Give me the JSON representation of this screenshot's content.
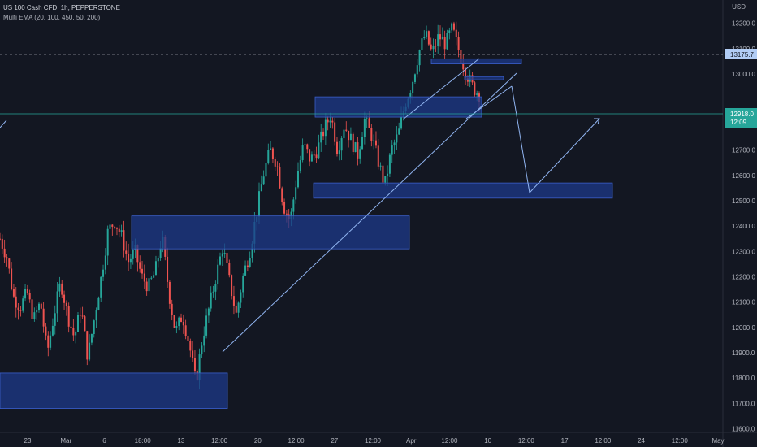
{
  "header": {
    "symbol_line": "US 100 Cash CFD, 1h, PEPPERSTONE",
    "indicator_line": "Multi EMA (20, 100, 450, 50, 200)"
  },
  "price_axis": {
    "currency": "USD",
    "ticks": [
      {
        "value": 13200,
        "label": "13200.0"
      },
      {
        "value": 13100,
        "label": "13100.0"
      },
      {
        "value": 13000,
        "label": "13000.0"
      },
      {
        "value": 12800,
        "label": "12800.0"
      },
      {
        "value": 12700,
        "label": "12700.0"
      },
      {
        "value": 12600,
        "label": "12600.0"
      },
      {
        "value": 12500,
        "label": "12500.0"
      },
      {
        "value": 12400,
        "label": "12400.0"
      },
      {
        "value": 12300,
        "label": "12300.0"
      },
      {
        "value": 12200,
        "label": "12200.0"
      },
      {
        "value": 12100,
        "label": "12100.0"
      },
      {
        "value": 12000,
        "label": "12000.0"
      },
      {
        "value": 11900,
        "label": "11900.0"
      },
      {
        "value": 11800,
        "label": "11800.0"
      },
      {
        "value": 11700,
        "label": "11700.0"
      },
      {
        "value": 11600,
        "label": "11600.0"
      }
    ],
    "high_marker": {
      "value": 13175.7,
      "label": "13175.7"
    },
    "last_price": {
      "value": 12918.0,
      "label": "12918.0",
      "countdown": "12:09"
    }
  },
  "time_axis": {
    "ticks": [
      {
        "label": "23"
      },
      {
        "label": "Mar"
      },
      {
        "label": "6"
      },
      {
        "label": "18:00"
      },
      {
        "label": "13"
      },
      {
        "label": "12:00"
      },
      {
        "label": "20"
      },
      {
        "label": "12:00"
      },
      {
        "label": "27"
      },
      {
        "label": "12:00"
      },
      {
        "label": "Apr"
      },
      {
        "label": "12:00"
      },
      {
        "label": "10"
      },
      {
        "label": "12:00"
      },
      {
        "label": "17"
      },
      {
        "label": "12:00"
      },
      {
        "label": "24"
      },
      {
        "label": "12:00"
      },
      {
        "label": "May"
      }
    ]
  },
  "colors": {
    "background": "#131722",
    "up": "#26a69a",
    "down": "#ef5350",
    "zone_fill": "#1e3a8a",
    "drawing": "#90b4f0",
    "high_marker": "#b2cdf5",
    "last_price_line": "#26a69a"
  },
  "chart_data": {
    "type": "candlestick",
    "y_range": [
      11560,
      13260
    ],
    "price_path": [
      12350,
      12280,
      12120,
      12080,
      12140,
      12030,
      12100,
      11900,
      12050,
      12180,
      12050,
      11960,
      12080,
      11880,
      12040,
      12200,
      12380,
      12420,
      12360,
      12260,
      12300,
      12200,
      12160,
      12220,
      12360,
      12140,
      11980,
      12050,
      11940,
      11780,
      11960,
      12080,
      12200,
      12320,
      12180,
      12050,
      12200,
      12300,
      12450,
      12600,
      12700,
      12650,
      12480,
      12420,
      12600,
      12720,
      12660,
      12700,
      12780,
      12840,
      12700,
      12800,
      12740,
      12680,
      12820,
      12760,
      12660,
      12560,
      12700,
      12760,
      12880,
      12960,
      13080,
      13160,
      13080,
      13150,
      13120,
      13180,
      13090,
      13010,
      12950,
      12918
    ],
    "zones": [
      {
        "top": 11820,
        "bottom": 11680
      },
      {
        "top": 12440,
        "bottom": 12310
      },
      {
        "top": 12910,
        "bottom": 12830
      },
      {
        "top": 12570,
        "bottom": 12510
      },
      {
        "top": 13060,
        "bottom": 13040
      },
      {
        "top": 12990,
        "bottom": 12980
      }
    ],
    "trendlines": [
      {
        "from": [
          11890,
          0
        ],
        "to": [
          13050,
          1
        ]
      },
      {
        "from": [
          12930,
          0
        ],
        "to": [
          13170,
          1
        ]
      }
    ],
    "projection": [
      12918,
      12580,
      12880
    ]
  }
}
